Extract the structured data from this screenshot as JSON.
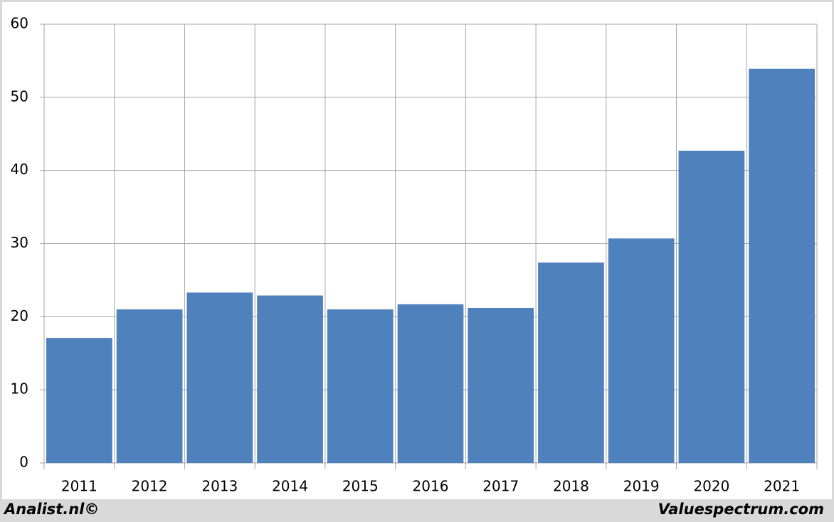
{
  "chart_data": {
    "type": "bar",
    "categories": [
      "2011",
      "2012",
      "2013",
      "2014",
      "2015",
      "2016",
      "2017",
      "2018",
      "2019",
      "2020",
      "2021"
    ],
    "values": [
      17.1,
      21.0,
      23.3,
      22.9,
      21.0,
      21.7,
      21.2,
      27.4,
      30.7,
      42.7,
      53.9
    ],
    "color": "#4f81bd",
    "ylim": [
      0,
      60
    ],
    "yticks": [
      0,
      10,
      20,
      30,
      40,
      50,
      60
    ],
    "grid": true,
    "credits": [
      "Analist.nl©",
      "Valuespectrum.com"
    ]
  }
}
